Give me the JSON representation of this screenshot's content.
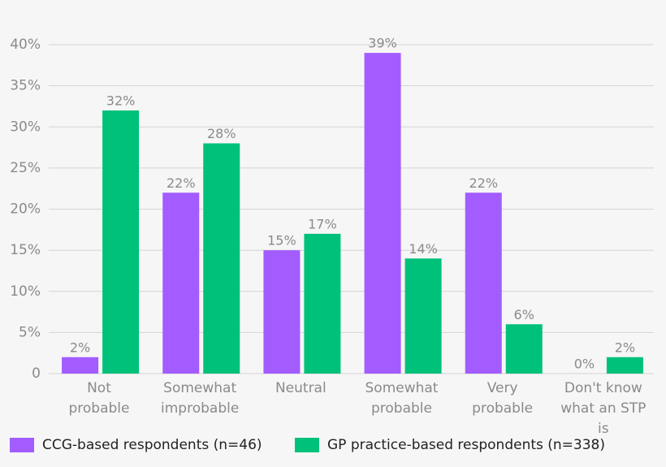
{
  "chart_data": {
    "type": "bar",
    "categories": [
      "Not\nprobable",
      "Somewhat\nimprobable",
      "Neutral",
      "Somewhat\nprobable",
      "Very\nprobable",
      "Don't know\nwhat an STP is"
    ],
    "series": [
      {
        "name": "CCG-based respondents (n=46)",
        "color": "#a35cff",
        "values": [
          2,
          22,
          15,
          39,
          22,
          0
        ],
        "value_labels": [
          "2%",
          "22%",
          "15%",
          "39%",
          "22%",
          "0%"
        ]
      },
      {
        "name": "GP practice-based respondents (n=338)",
        "color": "#00c17a",
        "values": [
          32,
          28,
          17,
          14,
          6,
          2
        ],
        "value_labels": [
          "32%",
          "28%",
          "17%",
          "14%",
          "6%",
          "2%"
        ]
      }
    ],
    "ylim": [
      0,
      40
    ],
    "yticks": [
      0,
      {
        "value": 5,
        "label": "5%"
      },
      {
        "value": 10,
        "label": "10%"
      },
      {
        "value": 15,
        "label": "15%"
      },
      {
        "value": 20,
        "label": "20%"
      },
      {
        "value": 25,
        "label": "25%"
      },
      {
        "value": 30,
        "label": "30%"
      },
      {
        "value": 35,
        "label": "35%"
      },
      {
        "value": 40,
        "label": "40%"
      }
    ],
    "grid": true
  }
}
